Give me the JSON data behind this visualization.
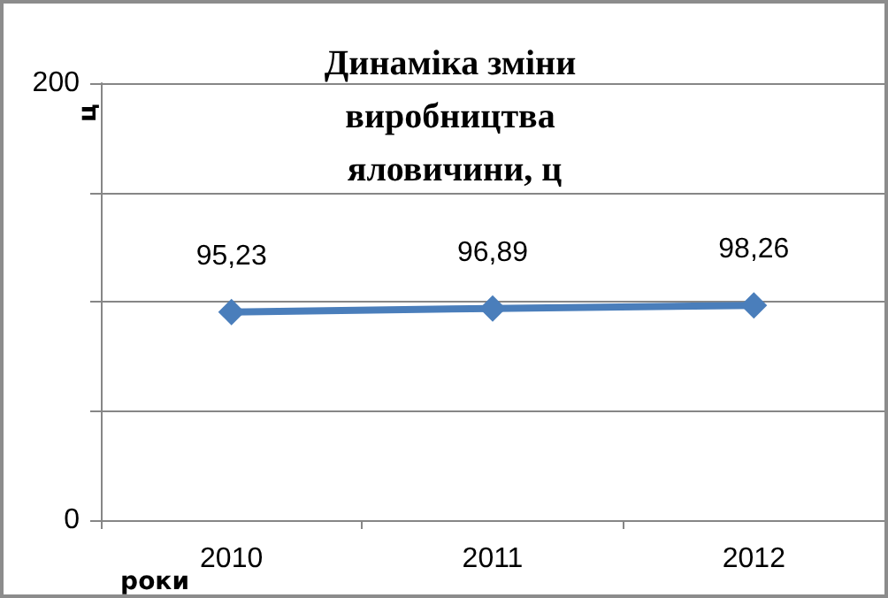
{
  "chart_data": {
    "type": "line",
    "title": "Динаміка зміни виробництва яловичини, ц",
    "xlabel": "роки",
    "ylabel": "ц",
    "categories": [
      "2010",
      "2011",
      "2012"
    ],
    "series": [
      {
        "color": "#4a7ebb",
        "values": [
          95.23,
          96.89,
          98.26
        ]
      }
    ],
    "value_labels": [
      "95,23",
      "96,89",
      "98,26"
    ],
    "ylim": [
      0,
      200
    ],
    "yticks": [
      0,
      {
        "value": 50,
        "label": null
      },
      {
        "value": 100,
        "label": null
      },
      {
        "value": 150,
        "label": null
      },
      200
    ],
    "grid": "y",
    "marker": "diamond",
    "line_style": "solid"
  }
}
